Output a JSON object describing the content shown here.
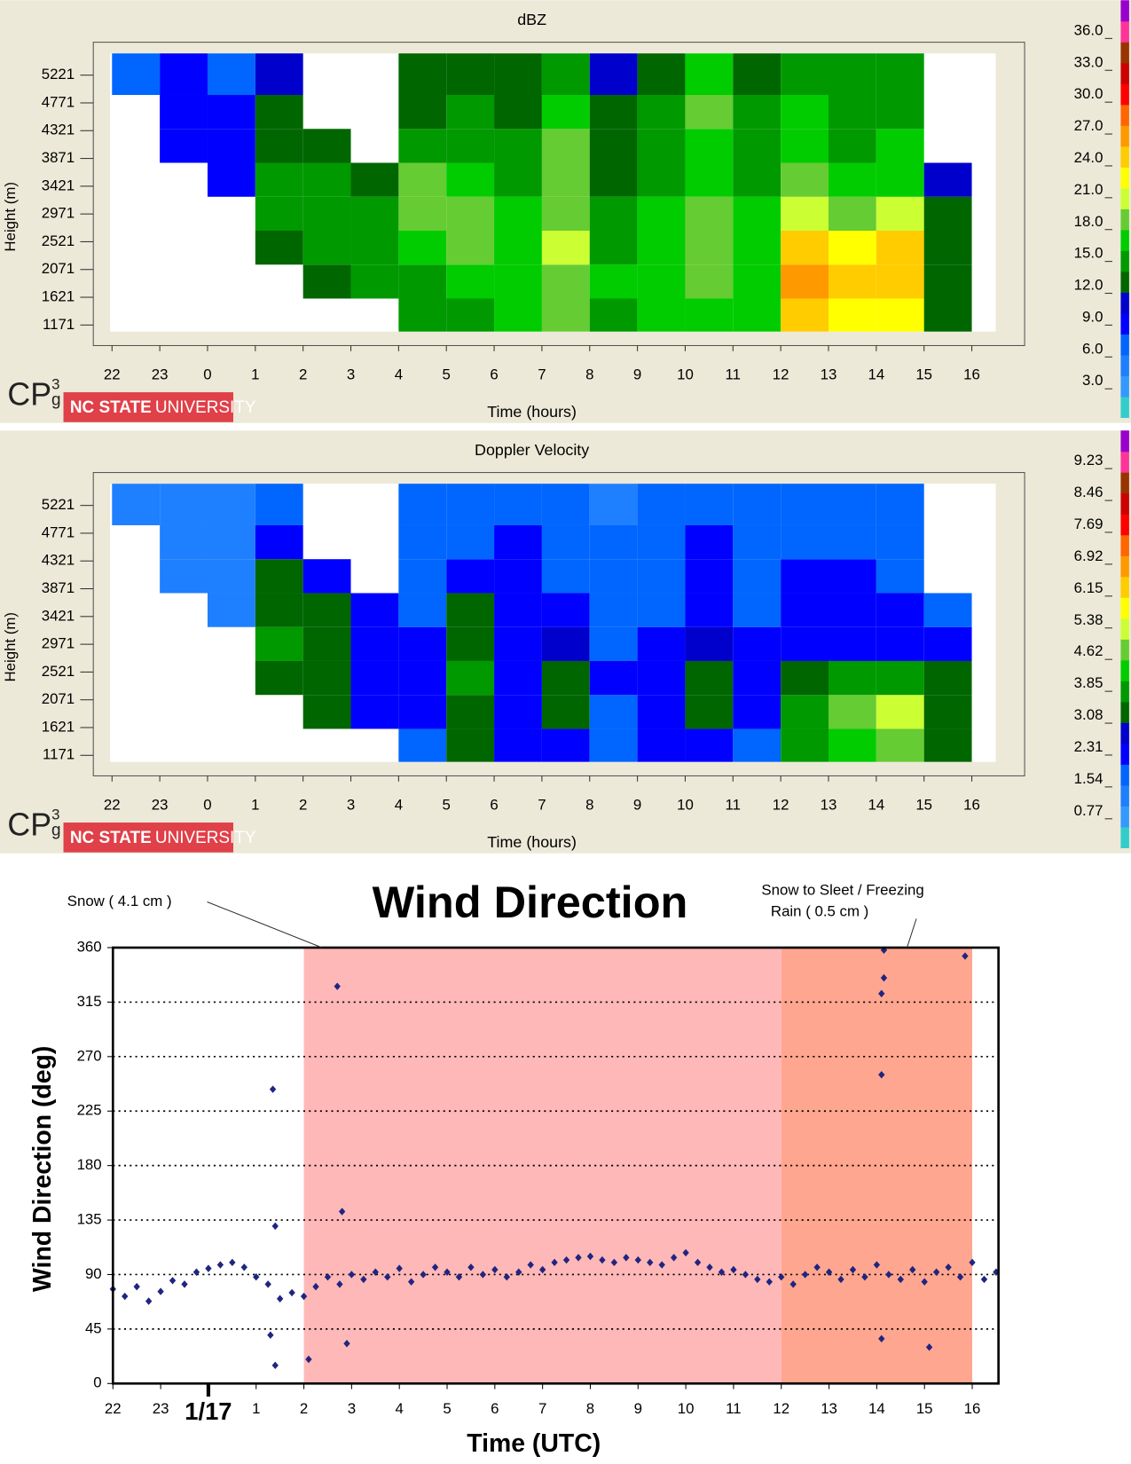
{
  "chart_data": [
    {
      "type": "heatmap",
      "title": "dBZ",
      "x_label": "Time (hours)",
      "y_label": "Height (m)",
      "xlim": [
        -2.04,
        16.5
      ],
      "ylim": [
        1065,
        5573
      ],
      "xticks": [
        {
          "value": -2,
          "label": "22"
        },
        {
          "value": -1,
          "label": "23"
        },
        0,
        1,
        2,
        3,
        4,
        5,
        6,
        7,
        8,
        9,
        10,
        11,
        12,
        13,
        14,
        15,
        16
      ],
      "yticks": [
        1171,
        1621,
        2071,
        2521,
        2971,
        3421,
        3871,
        4321,
        4771,
        5221
      ],
      "xbins": [
        -2,
        -1,
        0,
        1,
        2,
        3,
        4,
        5,
        6,
        7,
        8,
        9,
        10,
        11,
        12,
        13,
        14,
        15,
        16
      ],
      "ybins": [
        1065,
        1600,
        2150,
        2700,
        3250,
        3800,
        4350,
        4900,
        5573
      ],
      "z": [
        [
          null,
          null,
          null,
          null,
          null,
          null,
          14,
          15,
          16,
          18,
          15,
          16,
          17,
          16,
          24,
          22,
          22,
          12
        ],
        [
          null,
          null,
          null,
          null,
          12,
          14,
          15,
          16,
          17,
          19,
          16,
          17,
          18,
          17,
          26,
          24,
          25,
          13
        ],
        [
          null,
          null,
          null,
          13,
          14,
          14,
          17,
          18,
          17,
          20,
          15,
          17,
          19,
          17,
          24,
          22,
          24,
          12
        ],
        [
          null,
          null,
          null,
          14,
          15,
          14,
          19,
          18,
          16,
          19,
          14,
          16,
          18,
          16,
          20,
          19,
          20,
          12
        ],
        [
          null,
          null,
          8,
          14,
          14,
          13,
          18,
          16,
          15,
          18,
          13,
          15,
          17,
          15,
          18,
          16,
          17,
          10
        ],
        [
          null,
          8,
          9,
          13,
          13,
          null,
          15,
          15,
          14,
          18,
          12,
          14,
          17,
          14,
          16,
          15,
          16,
          null
        ],
        [
          null,
          8,
          8,
          12,
          null,
          null,
          13,
          14,
          13,
          17,
          12,
          14,
          18,
          14,
          16,
          15,
          15,
          null
        ],
        [
          7,
          8,
          7,
          11,
          null,
          null,
          12,
          13,
          13,
          15,
          11,
          13,
          16,
          13,
          15,
          14,
          14,
          null
        ]
      ],
      "zlim": [
        -0.4,
        38.9
      ],
      "zticks": [
        {
          "value": 3,
          "label": "3.0"
        },
        {
          "value": 6,
          "label": "6.0"
        },
        {
          "value": 9,
          "label": "9.0"
        },
        {
          "value": 12,
          "label": "12.0"
        },
        {
          "value": 15,
          "label": "15.0"
        },
        {
          "value": 18,
          "label": "18.0"
        },
        {
          "value": 21,
          "label": "21.0"
        },
        {
          "value": 24,
          "label": "24.0"
        },
        {
          "value": 27,
          "label": "27.0"
        },
        {
          "value": 30,
          "label": "30.0"
        },
        {
          "value": 33,
          "label": "33.0"
        },
        {
          "value": 36,
          "label": "36.0"
        }
      ],
      "colors": [
        "#33cccc",
        "#3399ff",
        "#1e7fff",
        "#0066ff",
        "#0000ff",
        "#0000cc",
        "#006600",
        "#009900",
        "#00cc00",
        "#66cc33",
        "#ccff33",
        "#ffff00",
        "#ffcc00",
        "#ff9900",
        "#ff6600",
        "#ff0000",
        "#cc0000",
        "#993300",
        "#ff3399",
        "#9900cc"
      ],
      "logo": {
        "mark": "CP",
        "sup": "3",
        "sub": "g",
        "org_bold": "NC STATE",
        "org": "UNIVERSITY"
      }
    },
    {
      "type": "heatmap",
      "title": "Doppler Velocity",
      "x_label": "Time (hours)",
      "y_label": "Height (m)",
      "xlim": [
        -2.04,
        16.5
      ],
      "ylim": [
        1065,
        5573
      ],
      "xticks": [
        {
          "value": -2,
          "label": "22"
        },
        {
          "value": -1,
          "label": "23"
        },
        0,
        1,
        2,
        3,
        4,
        5,
        6,
        7,
        8,
        9,
        10,
        11,
        12,
        13,
        14,
        15,
        16
      ],
      "yticks": [
        1171,
        1621,
        2071,
        2521,
        2971,
        3421,
        3871,
        4321,
        4771,
        5221
      ],
      "xbins": [
        -2,
        -1,
        0,
        1,
        2,
        3,
        4,
        5,
        6,
        7,
        8,
        9,
        10,
        11,
        12,
        13,
        14,
        15,
        16
      ],
      "ybins": [
        1065,
        1600,
        2150,
        2700,
        3250,
        3800,
        4350,
        4900,
        5573
      ],
      "z": [
        [
          null,
          null,
          null,
          null,
          null,
          null,
          1.8,
          3.2,
          2.0,
          2.2,
          1.5,
          2.0,
          2.2,
          1.8,
          3.6,
          4.4,
          4.8,
          3.4
        ],
        [
          null,
          null,
          null,
          null,
          3.2,
          2.2,
          2.0,
          3.4,
          2.0,
          3.0,
          1.8,
          2.0,
          3.0,
          2.0,
          3.8,
          4.6,
          5.0,
          3.4
        ],
        [
          null,
          null,
          null,
          3.4,
          3.4,
          2.0,
          2.2,
          3.6,
          2.4,
          3.2,
          2.0,
          2.2,
          3.2,
          2.4,
          3.4,
          3.6,
          3.6,
          3.0
        ],
        [
          null,
          null,
          null,
          3.6,
          3.2,
          2.0,
          2.0,
          3.4,
          2.0,
          2.8,
          1.8,
          2.0,
          2.8,
          2.0,
          2.2,
          2.2,
          2.2,
          2.0
        ],
        [
          null,
          null,
          1.2,
          3.4,
          3.0,
          2.0,
          1.8,
          3.0,
          2.2,
          2.0,
          1.8,
          1.8,
          2.0,
          1.8,
          2.0,
          2.0,
          2.0,
          1.6
        ],
        [
          null,
          1.2,
          1.2,
          3.2,
          2.0,
          null,
          1.8,
          2.0,
          2.0,
          1.8,
          1.6,
          1.8,
          2.0,
          1.8,
          2.0,
          2.0,
          1.8,
          null
        ],
        [
          null,
          1.2,
          1.2,
          2.0,
          null,
          null,
          1.6,
          1.8,
          2.0,
          1.8,
          1.6,
          1.8,
          2.0,
          1.6,
          1.8,
          1.8,
          1.8,
          null
        ],
        [
          1.2,
          1.2,
          1.2,
          1.8,
          null,
          null,
          1.6,
          1.8,
          1.8,
          1.6,
          1.4,
          1.6,
          1.8,
          1.6,
          1.8,
          1.6,
          1.6,
          null
        ]
      ],
      "zlim": [
        -0.11,
        9.97
      ],
      "zticks": [
        0.77,
        1.54,
        2.31,
        3.08,
        3.85,
        4.62,
        5.38,
        6.15,
        6.92,
        7.69,
        8.46,
        9.23
      ],
      "colors": [
        "#33cccc",
        "#3399ff",
        "#1e7fff",
        "#0066ff",
        "#0000ff",
        "#0000cc",
        "#006600",
        "#009900",
        "#00cc00",
        "#66cc33",
        "#ccff33",
        "#ffff00",
        "#ffcc00",
        "#ff9900",
        "#ff6600",
        "#ff0000",
        "#cc0000",
        "#993300",
        "#ff3399",
        "#9900cc"
      ],
      "logo": {
        "mark": "CP",
        "sup": "3",
        "sub": "g",
        "org_bold": "NC STATE",
        "org": "UNIVERSITY"
      }
    },
    {
      "type": "scatter",
      "title": "Wind Direction",
      "x_label": "Time (UTC)",
      "y_label": "Wind Direction (deg)",
      "xlim": [
        -2,
        16.55
      ],
      "ylim": [
        0,
        360
      ],
      "xticks": [
        {
          "value": -2,
          "label": "22"
        },
        {
          "value": -1,
          "label": "23"
        },
        {
          "value": 0,
          "label": "1/17"
        },
        1,
        2,
        3,
        4,
        5,
        6,
        7,
        8,
        9,
        10,
        11,
        12,
        13,
        14,
        15,
        16
      ],
      "yticks": [
        0,
        45,
        90,
        135,
        180,
        225,
        270,
        315,
        360
      ],
      "grid": true,
      "regions": [
        {
          "from": 2,
          "to": 12,
          "color": "#ffb8b8"
        },
        {
          "from": 12,
          "to": 16,
          "color": "#ffa690"
        }
      ],
      "annotations": [
        {
          "text": [
            "Snow ( 4.1 cm )"
          ]
        },
        {
          "text": [
            "Snow to Sleet / Freezing",
            "Rain ( 0.5 cm )"
          ]
        }
      ],
      "series": [
        {
          "color": "#1f2580",
          "x": [
            -2.0,
            -1.75,
            -1.5,
            -1.25,
            -1.0,
            -0.75,
            -0.5,
            -0.25,
            0,
            0.25,
            0.5,
            0.75,
            1.0,
            1.25,
            1.5,
            1.75,
            2.0,
            2.25,
            2.5,
            2.75,
            3.0,
            3.25,
            3.5,
            3.75,
            4.0,
            4.25,
            4.5,
            4.75,
            5.0,
            5.25,
            5.5,
            5.75,
            6.0,
            6.25,
            6.5,
            6.75,
            7.0,
            7.25,
            7.5,
            7.75,
            8.0,
            8.25,
            8.5,
            8.75,
            9.0,
            9.25,
            9.5,
            9.75,
            10.0,
            10.25,
            10.5,
            10.75,
            11.0,
            11.25,
            11.5,
            11.75,
            12.0,
            12.25,
            12.5,
            12.75,
            13.0,
            13.25,
            13.5,
            13.75,
            14.0,
            14.25,
            14.5,
            14.75,
            15.0,
            15.25,
            15.5,
            15.75,
            16.0,
            16.25,
            16.5,
            1.35,
            1.4,
            1.3,
            1.4,
            2.1,
            2.7,
            2.8,
            2.9,
            14.15,
            14.15,
            14.1,
            14.1,
            14.1,
            15.1,
            15.85
          ],
          "values": [
            78,
            72,
            80,
            68,
            76,
            85,
            82,
            92,
            95,
            98,
            100,
            96,
            88,
            82,
            70,
            75,
            72,
            80,
            88,
            82,
            90,
            86,
            92,
            88,
            95,
            84,
            90,
            96,
            92,
            88,
            96,
            90,
            94,
            88,
            92,
            98,
            94,
            100,
            102,
            104,
            105,
            102,
            100,
            104,
            102,
            100,
            98,
            104,
            108,
            100,
            96,
            92,
            94,
            90,
            86,
            84,
            88,
            82,
            90,
            96,
            92,
            86,
            94,
            88,
            98,
            90,
            86,
            94,
            84,
            92,
            96,
            88,
            100,
            86,
            92,
            243,
            130,
            40,
            15,
            20,
            328,
            142,
            33,
            358,
            335,
            322,
            255,
            37,
            30,
            353
          ]
        }
      ]
    }
  ]
}
